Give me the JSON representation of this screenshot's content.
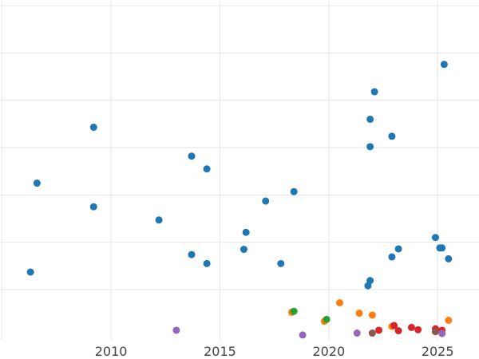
{
  "chart_data": {
    "type": "scatter",
    "title": "",
    "xlabel": "",
    "ylabel": "",
    "xlim": [
      2004.9,
      2026.9
    ],
    "ylim": [
      -0.08,
      7.12
    ],
    "x_ticks": [
      {
        "value": 2010,
        "label": "2010"
      },
      {
        "value": 2015,
        "label": "2015"
      },
      {
        "value": 2020,
        "label": "2020"
      },
      {
        "value": 2025,
        "label": "2025"
      }
    ],
    "y_gridlines": [
      1,
      2,
      3,
      4,
      5,
      6,
      7
    ],
    "x_gridlines": [
      2005,
      2010,
      2015,
      2020,
      2025
    ],
    "grid": true,
    "legend": "none",
    "series": [
      {
        "color": "#1f77b4",
        "points": [
          [
            2006.3,
            1.37
          ],
          [
            2006.6,
            3.25
          ],
          [
            2009.2,
            2.75
          ],
          [
            2009.2,
            4.43
          ],
          [
            2012.2,
            2.47
          ],
          [
            2013.7,
            1.74
          ],
          [
            2013.7,
            3.82
          ],
          [
            2014.4,
            1.55
          ],
          [
            2014.4,
            3.55
          ],
          [
            2016.1,
            1.85
          ],
          [
            2016.2,
            2.21
          ],
          [
            2017.1,
            2.87
          ],
          [
            2017.8,
            1.55
          ],
          [
            2018.4,
            3.07
          ],
          [
            2021.8,
            1.08
          ],
          [
            2021.9,
            1.19
          ],
          [
            2021.9,
            4.02
          ],
          [
            2021.9,
            4.6
          ],
          [
            2022.1,
            5.18
          ],
          [
            2022.9,
            1.69
          ],
          [
            2022.9,
            4.24
          ],
          [
            2023.2,
            1.86
          ],
          [
            2024.9,
            2.1
          ],
          [
            2025.1,
            1.88
          ],
          [
            2025.2,
            1.88
          ],
          [
            2025.3,
            5.76
          ],
          [
            2025.5,
            1.65
          ]
        ]
      },
      {
        "color": "#ff7f0e",
        "points": [
          [
            2018.3,
            0.52
          ],
          [
            2019.8,
            0.33
          ],
          [
            2020.5,
            0.72
          ],
          [
            2021.4,
            0.5
          ],
          [
            2022.0,
            0.46
          ],
          [
            2022.9,
            0.22
          ],
          [
            2025.5,
            0.35
          ]
        ]
      },
      {
        "color": "#2ca02c",
        "points": [
          [
            2018.4,
            0.54
          ],
          [
            2019.9,
            0.37
          ]
        ]
      },
      {
        "color": "#d62728",
        "points": [
          [
            2022.3,
            0.14
          ],
          [
            2023.0,
            0.24
          ],
          [
            2023.2,
            0.13
          ],
          [
            2023.8,
            0.2
          ],
          [
            2024.1,
            0.15
          ],
          [
            2024.9,
            0.17
          ],
          [
            2025.2,
            0.14
          ]
        ]
      },
      {
        "color": "#8c564b",
        "points": [
          [
            2022.0,
            0.08
          ],
          [
            2024.9,
            0.11
          ]
        ]
      },
      {
        "color": "#9467bd",
        "points": [
          [
            2013.0,
            0.14
          ],
          [
            2018.8,
            0.04
          ],
          [
            2021.3,
            0.08
          ],
          [
            2025.2,
            0.07
          ]
        ]
      }
    ]
  }
}
